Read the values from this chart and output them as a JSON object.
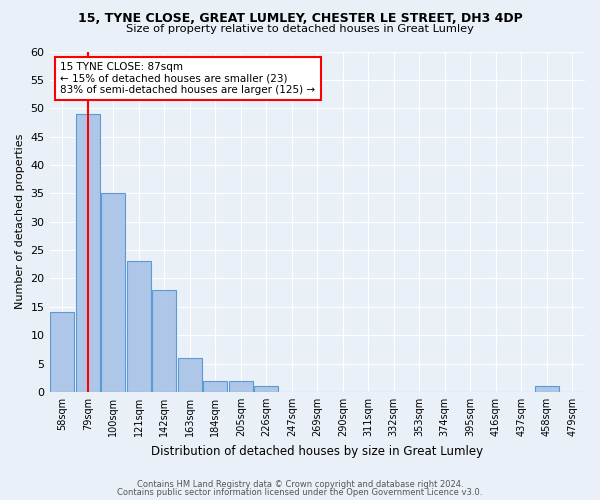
{
  "title1": "15, TYNE CLOSE, GREAT LUMLEY, CHESTER LE STREET, DH3 4DP",
  "title2": "Size of property relative to detached houses in Great Lumley",
  "xlabel": "Distribution of detached houses by size in Great Lumley",
  "ylabel": "Number of detached properties",
  "bin_labels": [
    "58sqm",
    "79sqm",
    "100sqm",
    "121sqm",
    "142sqm",
    "163sqm",
    "184sqm",
    "205sqm",
    "226sqm",
    "247sqm",
    "269sqm",
    "290sqm",
    "311sqm",
    "332sqm",
    "353sqm",
    "374sqm",
    "395sqm",
    "416sqm",
    "437sqm",
    "458sqm",
    "479sqm"
  ],
  "values": [
    14,
    49,
    35,
    23,
    18,
    6,
    2,
    2,
    1,
    0,
    0,
    0,
    0,
    0,
    0,
    0,
    0,
    0,
    0,
    1,
    0
  ],
  "bar_color": "#aec6e8",
  "bar_edge_color": "#5b9bd5",
  "red_line_x": 1.0,
  "annotation_title": "15 TYNE CLOSE: 87sqm",
  "annotation_line1": "← 15% of detached houses are smaller (23)",
  "annotation_line2": "83% of semi-detached houses are larger (125) →",
  "ylim": [
    0,
    60
  ],
  "yticks": [
    0,
    5,
    10,
    15,
    20,
    25,
    30,
    35,
    40,
    45,
    50,
    55,
    60
  ],
  "footer1": "Contains HM Land Registry data © Crown copyright and database right 2024.",
  "footer2": "Contains public sector information licensed under the Open Government Licence v3.0.",
  "bg_color": "#eaf0f8",
  "plot_bg_color": "#eaf0f8"
}
